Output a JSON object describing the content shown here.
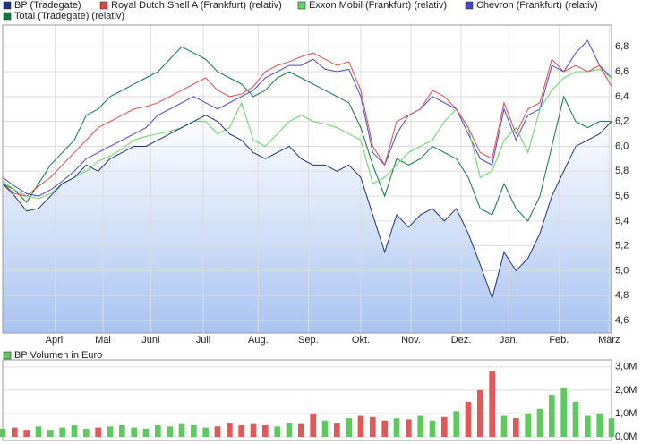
{
  "chart_data": [
    {
      "type": "line",
      "x": [
        0,
        5,
        10,
        15,
        20,
        25,
        30,
        35,
        40,
        45,
        50,
        55,
        60,
        65,
        70,
        75,
        80,
        85,
        90,
        95,
        100,
        105,
        110,
        115,
        120,
        125,
        130,
        135,
        140,
        145,
        150,
        155,
        160,
        165,
        170,
        175,
        180,
        185,
        190,
        195,
        200,
        205,
        210,
        215,
        220,
        225,
        230,
        235,
        240,
        245,
        250,
        255
      ],
      "xlim": [
        0,
        255
      ],
      "xticks": [
        {
          "value": 22,
          "label": "April"
        },
        {
          "value": 42,
          "label": "Mai"
        },
        {
          "value": 62,
          "label": "Juni"
        },
        {
          "value": 84,
          "label": "Juli"
        },
        {
          "value": 107,
          "label": "Aug."
        },
        {
          "value": 128,
          "label": "Sep."
        },
        {
          "value": 150,
          "label": "Okt."
        },
        {
          "value": 171,
          "label": "Nov."
        },
        {
          "value": 192,
          "label": "Dez."
        },
        {
          "value": 212,
          "label": "Jan."
        },
        {
          "value": 233,
          "label": "Feb."
        },
        {
          "value": 254,
          "label": "März"
        }
      ],
      "ylim": [
        4.5,
        6.96
      ],
      "yticks": [
        {
          "value": 4.6,
          "label": "4,6"
        },
        {
          "value": 4.8,
          "label": "4,8"
        },
        {
          "value": 5.0,
          "label": "5,0"
        },
        {
          "value": 5.2,
          "label": "5,2"
        },
        {
          "value": 5.4,
          "label": "5,4"
        },
        {
          "value": 5.6,
          "label": "5,6"
        },
        {
          "value": 5.8,
          "label": "5,8"
        },
        {
          "value": 6.0,
          "label": "6,0"
        },
        {
          "value": 6.2,
          "label": "6,2"
        },
        {
          "value": 6.4,
          "label": "6,4"
        },
        {
          "value": 6.6,
          "label": "6,6"
        },
        {
          "value": 6.8,
          "label": "6,8"
        }
      ],
      "grid": true,
      "area_color": "#a9c4f2",
      "series": [
        {
          "name": "BP (Tradegate)",
          "color": "#1a3380",
          "values": [
            5.7,
            5.6,
            5.48,
            5.5,
            5.6,
            5.7,
            5.75,
            5.85,
            5.8,
            5.9,
            5.95,
            6.0,
            6.0,
            6.05,
            6.1,
            6.15,
            6.2,
            6.25,
            6.2,
            6.1,
            6.05,
            5.95,
            5.9,
            5.95,
            6.0,
            5.9,
            5.85,
            5.85,
            5.8,
            5.85,
            5.75,
            5.45,
            5.15,
            5.45,
            5.35,
            5.45,
            5.5,
            5.4,
            5.5,
            5.3,
            5.05,
            4.78,
            5.15,
            5.0,
            5.1,
            5.3,
            5.6,
            5.8,
            6.0,
            6.05,
            6.1,
            6.2
          ]
        },
        {
          "name": "Royal Dutch Shell A (Frankfurt) (relativ)",
          "color": "#e04848",
          "values": [
            5.7,
            5.62,
            5.6,
            5.68,
            5.75,
            5.85,
            5.95,
            6.05,
            6.15,
            6.2,
            6.25,
            6.3,
            6.32,
            6.35,
            6.4,
            6.45,
            6.5,
            6.55,
            6.45,
            6.4,
            6.42,
            6.48,
            6.6,
            6.65,
            6.68,
            6.72,
            6.75,
            6.7,
            6.65,
            6.68,
            6.45,
            6.0,
            5.85,
            6.2,
            6.25,
            6.3,
            6.45,
            6.4,
            6.3,
            6.15,
            5.95,
            5.9,
            6.35,
            6.1,
            6.3,
            6.35,
            6.7,
            6.6,
            6.65,
            6.6,
            6.65,
            6.48
          ]
        },
        {
          "name": "Exxon Mobil (Frankfurt) (relativ)",
          "color": "#5fd65f",
          "values": [
            5.72,
            5.65,
            5.6,
            5.58,
            5.62,
            5.7,
            5.75,
            5.8,
            5.88,
            5.92,
            5.98,
            6.05,
            6.08,
            6.1,
            6.12,
            6.15,
            6.2,
            6.2,
            6.1,
            6.15,
            6.35,
            6.05,
            6.0,
            6.1,
            6.2,
            6.25,
            6.2,
            6.18,
            6.15,
            6.1,
            6.05,
            5.7,
            5.75,
            5.85,
            5.95,
            6.0,
            6.05,
            6.2,
            6.3,
            6.15,
            5.75,
            5.8,
            6.05,
            6.15,
            5.95,
            6.3,
            6.45,
            6.55,
            6.6,
            6.6,
            6.62,
            6.55
          ]
        },
        {
          "name": "Chevron (Frankfurt) (relativ)",
          "color": "#4646c8",
          "values": [
            5.75,
            5.68,
            5.62,
            5.6,
            5.65,
            5.72,
            5.8,
            5.9,
            5.95,
            6.0,
            6.05,
            6.1,
            6.15,
            6.25,
            6.3,
            6.35,
            6.4,
            6.35,
            6.3,
            6.35,
            6.4,
            6.45,
            6.55,
            6.6,
            6.65,
            6.65,
            6.7,
            6.62,
            6.6,
            6.62,
            6.4,
            5.95,
            5.85,
            6.1,
            6.25,
            6.3,
            6.4,
            6.35,
            6.3,
            6.1,
            5.9,
            5.85,
            6.3,
            6.05,
            6.25,
            6.3,
            6.65,
            6.6,
            6.75,
            6.85,
            6.65,
            6.55
          ]
        },
        {
          "name": "Total (Tradegate) (relativ)",
          "color": "#0b7a3c",
          "values": [
            5.7,
            5.65,
            5.55,
            5.7,
            5.85,
            5.95,
            6.05,
            6.25,
            6.3,
            6.4,
            6.45,
            6.5,
            6.55,
            6.6,
            6.7,
            6.8,
            6.75,
            6.7,
            6.6,
            6.55,
            6.5,
            6.4,
            6.45,
            6.55,
            6.6,
            6.55,
            6.5,
            6.45,
            6.4,
            6.35,
            6.15,
            5.85,
            5.6,
            5.9,
            5.85,
            5.9,
            6.0,
            5.95,
            5.9,
            5.75,
            5.5,
            5.45,
            5.7,
            5.5,
            5.4,
            5.6,
            6.0,
            6.4,
            6.2,
            6.15,
            6.2,
            6.2
          ]
        }
      ]
    },
    {
      "type": "bar",
      "x": [
        0,
        5,
        10,
        15,
        20,
        25,
        30,
        35,
        40,
        45,
        50,
        55,
        60,
        65,
        70,
        75,
        80,
        85,
        90,
        95,
        100,
        105,
        110,
        115,
        120,
        125,
        130,
        135,
        140,
        145,
        150,
        155,
        160,
        165,
        170,
        175,
        180,
        185,
        190,
        195,
        200,
        205,
        210,
        215,
        220,
        225,
        230,
        235,
        240,
        245,
        250,
        255
      ],
      "xlim": [
        0,
        255
      ],
      "ylim": [
        0,
        3.3
      ],
      "yticks": [
        {
          "value": 0,
          "label": "0,0M"
        },
        {
          "value": 1,
          "label": "1,0M"
        },
        {
          "value": 2,
          "label": "2,0M"
        },
        {
          "value": 3,
          "label": "3,0M"
        }
      ],
      "grid": true,
      "up_color": "#5fc95f",
      "down_color": "#e05858",
      "series": [
        {
          "name": "BP Volumen in Euro",
          "color": "#5fc95f",
          "values": [
            0.35,
            0.4,
            0.3,
            0.45,
            0.3,
            0.4,
            0.5,
            0.35,
            0.4,
            0.45,
            0.5,
            0.4,
            0.35,
            0.5,
            0.45,
            0.55,
            0.5,
            0.4,
            0.45,
            0.6,
            0.5,
            0.55,
            0.5,
            0.45,
            0.6,
            0.55,
            1.0,
            0.7,
            0.6,
            0.8,
            0.9,
            0.85,
            0.7,
            0.8,
            0.75,
            0.9,
            0.7,
            0.85,
            1.1,
            1.5,
            2.0,
            2.8,
            0.9,
            0.8,
            1.0,
            1.2,
            1.8,
            2.1,
            1.5,
            0.9,
            1.0,
            0.8
          ]
        }
      ]
    }
  ]
}
